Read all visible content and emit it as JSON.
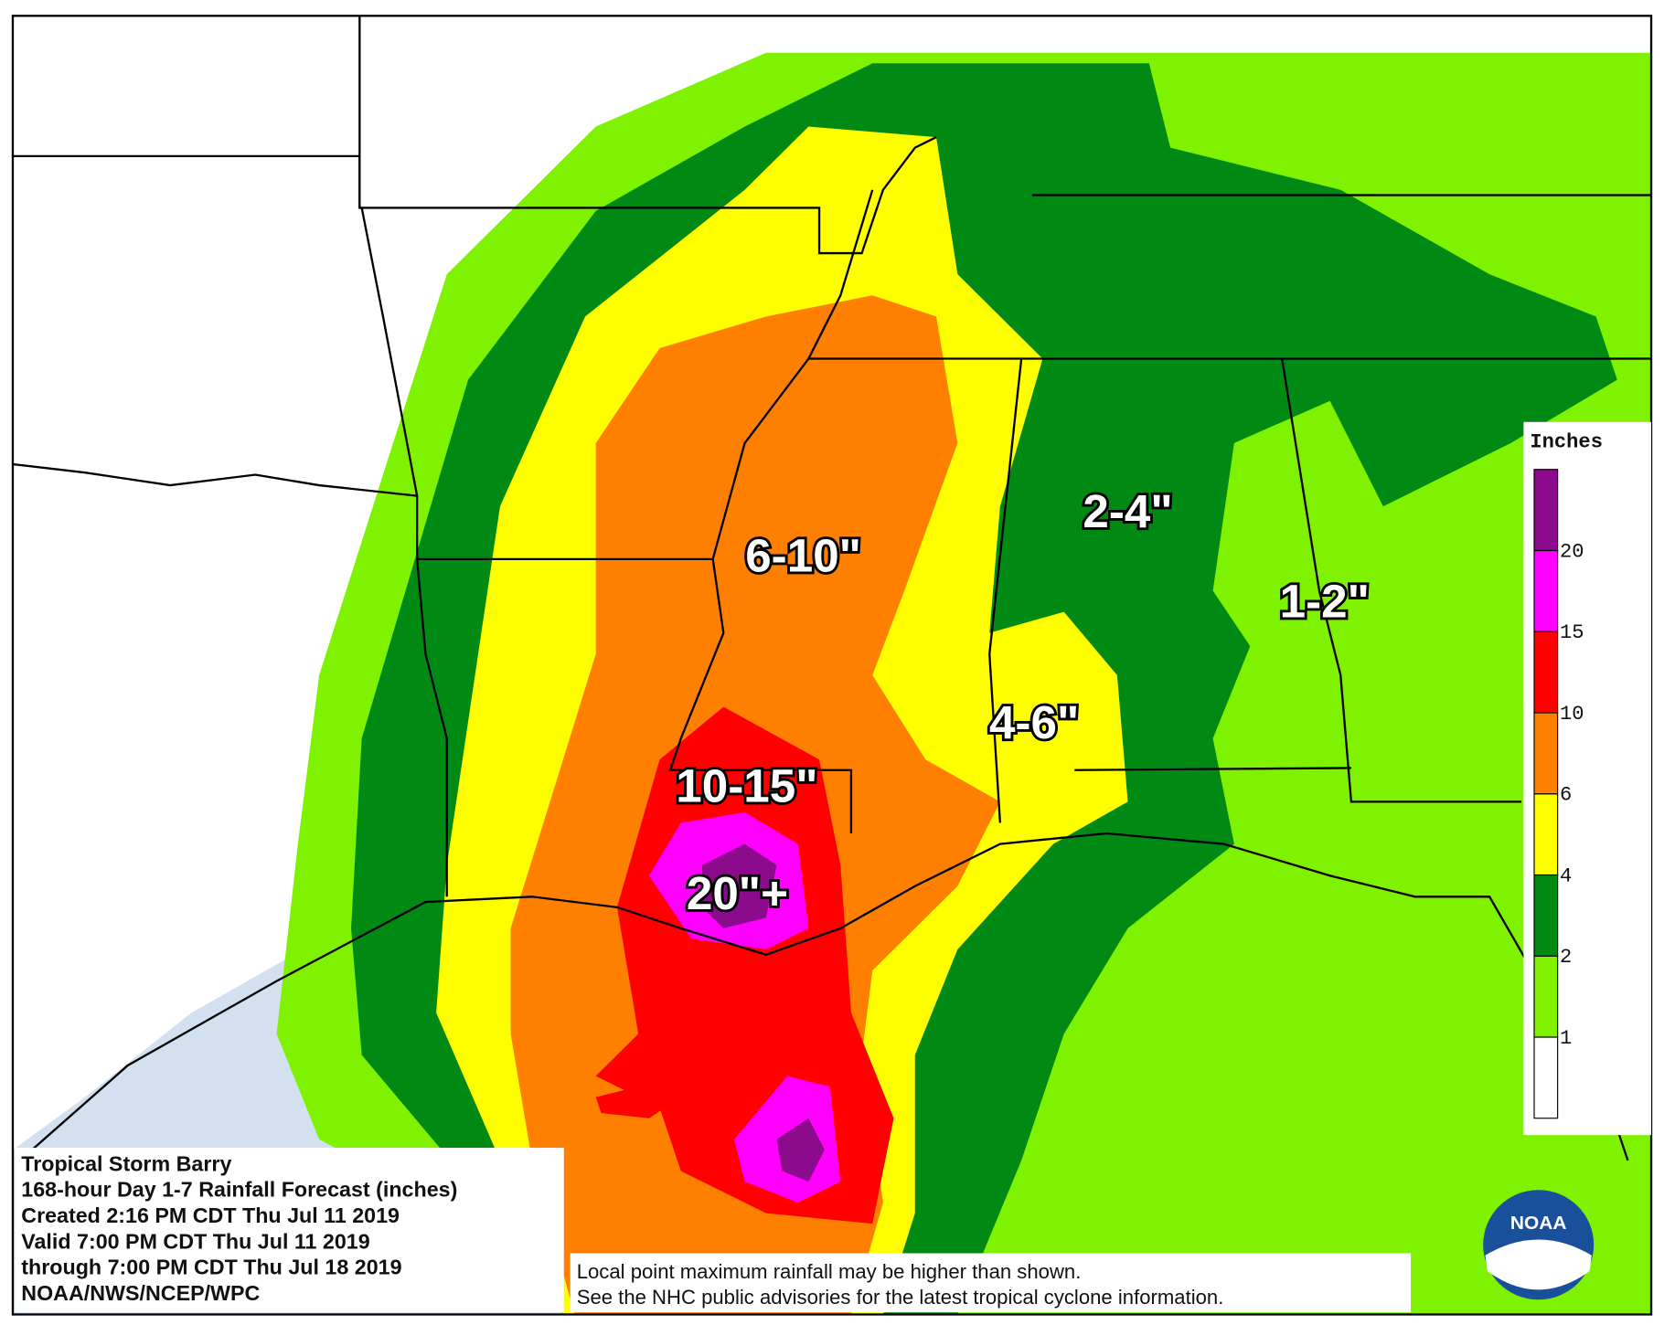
{
  "map": {
    "regions": [
      "6-10\"",
      "2-4\"",
      "1-2\"",
      "4-6\"",
      "10-15\"",
      "20\"+"
    ],
    "info": [
      "Tropical Storm Barry",
      "168-hour Day 1-7 Rainfall Forecast (inches)",
      "Created 2:16 PM CDT Thu Jul 11 2019",
      "Valid 7:00 PM CDT Thu Jul 11 2019",
      "through 7:00 PM CDT Thu Jul 18 2019",
      "NOAA/NWS/NCEP/WPC"
    ],
    "disclaimer": [
      "Local point maximum rainfall may be higher than shown.",
      "See the NHC public advisories for the latest tropical cyclone information."
    ],
    "logo": "NOAA",
    "legend": {
      "title": "Inches",
      "ticks": [
        1,
        2,
        4,
        6,
        10,
        15,
        20
      ],
      "colors": [
        "#ffffff",
        "#7ef200",
        "#008a14",
        "#ffff00",
        "#ff8000",
        "#ff0000",
        "#ff00ff",
        "#8c0a8c"
      ]
    }
  }
}
